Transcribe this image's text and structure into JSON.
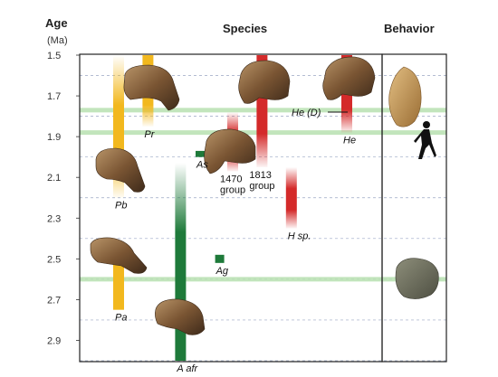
{
  "chart_data": {
    "type": "range-bar",
    "headers": {
      "age": "Age",
      "age_unit": "(Ma)",
      "species": "Species",
      "behavior": "Behavior"
    },
    "y_axis": {
      "ticks": [
        "1.5",
        "1.7",
        "1.9",
        "2.1",
        "2.3",
        "2.5",
        "2.7",
        "2.9"
      ],
      "range": [
        1.5,
        3.0
      ]
    },
    "gridlines": [
      1.6,
      1.8,
      2.0,
      2.2,
      2.4,
      2.6,
      2.8,
      3.0
    ],
    "highlight_bands": [
      1.77,
      1.88,
      2.6
    ],
    "bars": [
      {
        "id": "Pb",
        "label": "Pb",
        "color": "#f2b81e",
        "top": 1.5,
        "bottom": 2.2,
        "fade": "both",
        "x": 1.0
      },
      {
        "id": "Pb-lower",
        "label": "",
        "color": "#f2b81e",
        "top": 2.42,
        "bottom": 2.7,
        "fade": "top",
        "x": 1.0
      },
      {
        "id": "Pr",
        "label": "Pr",
        "color": "#f2b81e",
        "top": 1.5,
        "bottom": 1.85,
        "fade": "bottom",
        "x": 1.9
      },
      {
        "id": "Pa",
        "label": "Pa",
        "color": "#f2b81e",
        "top": 2.5,
        "bottom": 2.75,
        "fade": "top",
        "x": 1.0
      },
      {
        "id": "A_afr",
        "label": "A afr",
        "color": "#1e7a3a",
        "top": 2.03,
        "bottom": 3.0,
        "fade": "top",
        "x": 2.9
      },
      {
        "id": "As",
        "label": "As",
        "color": "#1e7a3a",
        "top": 1.97,
        "bottom": 2.0,
        "fade": "none",
        "x": 3.5
      },
      {
        "id": "Ag",
        "label": "Ag",
        "color": "#1e7a3a",
        "top": 2.48,
        "bottom": 2.52,
        "fade": "none",
        "x": 4.1
      },
      {
        "id": "1470",
        "label": "1470\ngroup",
        "color": "#d42a2a",
        "top": 1.78,
        "bottom": 2.07,
        "fade": "both",
        "x": 4.5
      },
      {
        "id": "1813",
        "label": "1813\ngroup",
        "color": "#d42a2a",
        "top": 1.5,
        "bottom": 2.05,
        "fade": "bottom",
        "x": 5.4
      },
      {
        "id": "Hsp",
        "label": "H sp.",
        "color": "#d42a2a",
        "top": 2.05,
        "bottom": 2.35,
        "fade": "both",
        "x": 6.3
      },
      {
        "id": "He",
        "label": "He",
        "color": "#d42a2a",
        "top": 1.5,
        "bottom": 1.88,
        "fade": "bottom",
        "x": 8.0
      }
    ],
    "annotations": [
      {
        "text": "He (D)",
        "age": 1.77
      }
    ],
    "behavior_icons": [
      "hand-axe-icon",
      "walking-human-icon",
      "core-stone-icon"
    ]
  }
}
